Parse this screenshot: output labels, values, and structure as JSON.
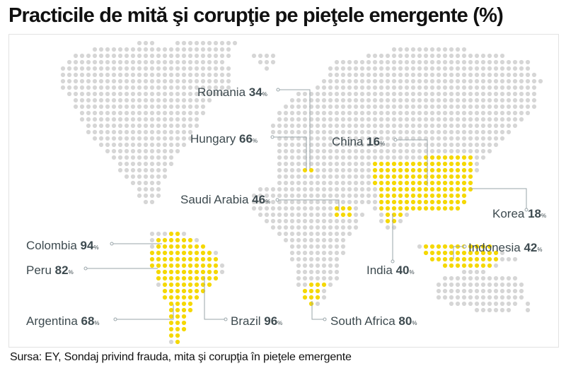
{
  "header": {
    "title": "Practicile de mită şi corupţie pe pieţele emergente (%)"
  },
  "footer": {
    "source": "Sursa: EY, Sondaj privind frauda, mita şi corupţia în pieţele emergente"
  },
  "chart_data": {
    "type": "map",
    "title": "Practicile de mită şi corupţie pe pieţele emergente (%)",
    "unit": "%",
    "series": [
      {
        "points": [
          {
            "country": "Romania",
            "value": 34
          },
          {
            "country": "Hungary",
            "value": 66
          },
          {
            "country": "China",
            "value": 16
          },
          {
            "country": "Saudi Arabia",
            "value": 46
          },
          {
            "country": "Korea",
            "value": 18
          },
          {
            "country": "Colombia",
            "value": 94
          },
          {
            "country": "Indonesia",
            "value": 42
          },
          {
            "country": "Peru",
            "value": 82
          },
          {
            "country": "India",
            "value": 40
          },
          {
            "country": "Argentina",
            "value": 68
          },
          {
            "country": "Brazil",
            "value": 96
          },
          {
            "country": "South Africa",
            "value": 80
          }
        ]
      }
    ],
    "colors": {
      "highlight": "#f5d800",
      "land": "#d6d6d6",
      "leader": "#9aa6aa",
      "label": "#3d4a4f"
    }
  }
}
